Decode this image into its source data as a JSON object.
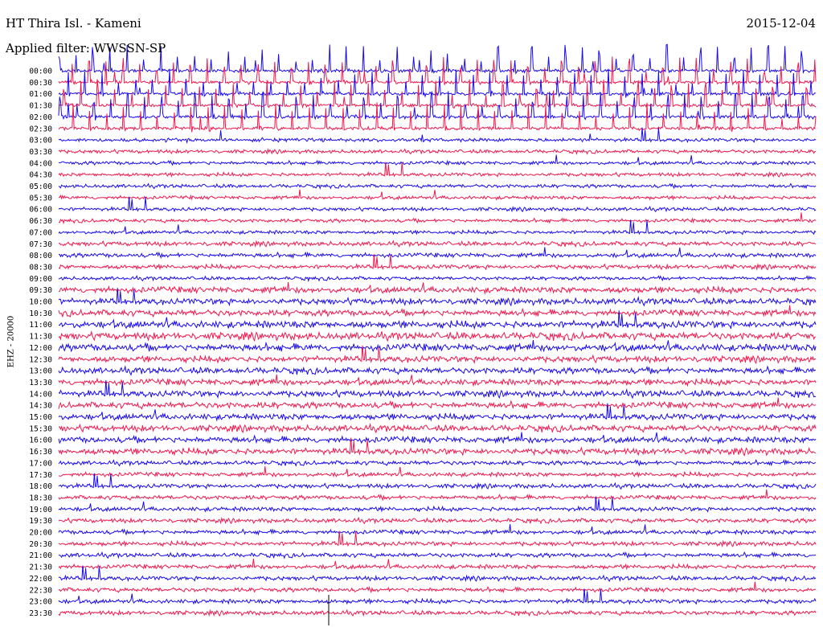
{
  "header": {
    "station": "HT Thira Isl. - Kameni",
    "date": "2015-12-04",
    "filter": "Applied filter: WWSSN-SP",
    "channel": "EHZ - 20000"
  },
  "colors": {
    "trace_a": "#1a0af0",
    "trace_b": "#f0184e",
    "background": "#ffffff",
    "text": "#000000"
  },
  "chart_data": {
    "type": "helicorder",
    "channel": "EHZ - 20000",
    "row_interval_minutes": 30,
    "row_count": 48,
    "grid": false,
    "color_cycle": [
      "blue",
      "red"
    ],
    "tick_labels": [
      "00:00",
      "00:30",
      "01:00",
      "01:30",
      "02:00",
      "02:30",
      "03:00",
      "03:30",
      "04:00",
      "04:30",
      "05:00",
      "05:30",
      "06:00",
      "06:30",
      "07:00",
      "07:30",
      "08:00",
      "08:30",
      "09:00",
      "09:30",
      "10:00",
      "10:30",
      "11:00",
      "11:30",
      "12:00",
      "12:30",
      "13:00",
      "13:30",
      "14:00",
      "14:30",
      "15:00",
      "15:30",
      "16:00",
      "16:30",
      "17:00",
      "17:30",
      "18:00",
      "18:30",
      "19:00",
      "19:30",
      "20:00",
      "20:30",
      "21:00",
      "21:30",
      "22:00",
      "22:30",
      "23:00",
      "23:30"
    ]
  }
}
